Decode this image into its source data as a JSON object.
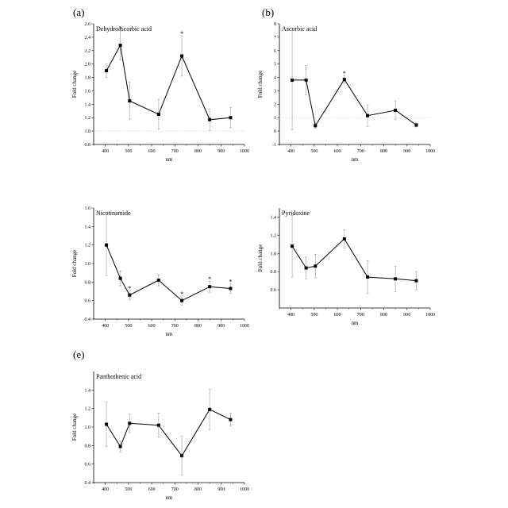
{
  "figure": {
    "panels": [
      {
        "letter": "(a)",
        "chart_data": {
          "type": "line",
          "title": "Dehydroascorbic acid",
          "xlabel": "nm",
          "ylabel": "Fold change",
          "xlim": [
            350,
            1000
          ],
          "ylim": [
            0.8,
            2.6
          ],
          "xticks": [
            "400",
            "500",
            "600",
            "700",
            "800",
            "900",
            "1000"
          ],
          "yticks": [
            "0.8",
            "1.0",
            "1.2",
            "1.4",
            "1.6",
            "1.8",
            "2.0",
            "2.2",
            "2.4",
            "2.6"
          ],
          "reference_y": 1.0,
          "x": [
            405,
            465,
            505,
            630,
            730,
            850,
            940
          ],
          "values": [
            1.9,
            2.28,
            1.45,
            1.25,
            2.12,
            1.17,
            1.2
          ],
          "errors": [
            0.1,
            0.22,
            0.28,
            0.22,
            0.3,
            0.16,
            0.15
          ],
          "significance": [
            "",
            "*",
            "",
            "",
            "*",
            "",
            ""
          ]
        }
      },
      {
        "letter": "(b)",
        "chart_data": {
          "type": "line",
          "title": "Ascorbic acid",
          "xlabel": "nm",
          "ylabel": "Fold change",
          "xlim": [
            350,
            1000
          ],
          "ylim": [
            -1,
            8
          ],
          "xticks": [
            "400",
            "500",
            "600",
            "700",
            "800",
            "900",
            "1000"
          ],
          "yticks": [
            "-1",
            "0",
            "1",
            "2",
            "3",
            "4",
            "5",
            "6",
            "7",
            "8"
          ],
          "reference_y": 1.0,
          "x": [
            405,
            465,
            505,
            630,
            730,
            850,
            940
          ],
          "values": [
            3.8,
            3.8,
            0.4,
            3.85,
            1.15,
            1.55,
            0.45
          ],
          "errors": [
            3.7,
            1.1,
            0.2,
            0.3,
            0.8,
            0.7,
            0.15
          ],
          "significance": [
            "",
            "",
            "",
            "*",
            "",
            "",
            ""
          ]
        }
      },
      {
        "letter": "",
        "chart_data": {
          "type": "line",
          "title": "Nicotinamide",
          "xlabel": "nm",
          "ylabel": "Fold change",
          "xlim": [
            350,
            1000
          ],
          "ylim": [
            0.4,
            1.6
          ],
          "xticks": [
            "400",
            "500",
            "600",
            "700",
            "800",
            "900",
            "1000"
          ],
          "yticks": [
            "0.4",
            "0.6",
            "0.8",
            "1.0",
            "1.2",
            "1.4",
            "1.6"
          ],
          "reference_y": null,
          "x": [
            405,
            465,
            505,
            630,
            730,
            850,
            940
          ],
          "values": [
            1.2,
            0.84,
            0.66,
            0.82,
            0.6,
            0.75,
            0.73
          ],
          "errors": [
            0.33,
            0.08,
            0.05,
            0.06,
            0.05,
            0.06,
            0.05
          ],
          "significance": [
            "",
            "",
            "*",
            "",
            "*",
            "*",
            "*"
          ]
        }
      },
      {
        "letter": "",
        "chart_data": {
          "type": "line",
          "title": "Pyridoxine",
          "xlabel": "nm",
          "ylabel": "Fold change",
          "xlim": [
            350,
            1000
          ],
          "ylim": [
            0.4,
            1.5
          ],
          "xticks": [
            "400",
            "500",
            "600",
            "700",
            "800",
            "900",
            "1000"
          ],
          "yticks": [
            "0.6",
            "0.8",
            "1.0",
            "1.2",
            "1.4"
          ],
          "reference_y": null,
          "x": [
            405,
            465,
            505,
            630,
            730,
            850,
            940
          ],
          "values": [
            1.08,
            0.84,
            0.86,
            1.16,
            0.74,
            0.72,
            0.7
          ],
          "errors": [
            0.34,
            0.12,
            0.13,
            0.1,
            0.18,
            0.14,
            0.1
          ],
          "significance": [
            "",
            "",
            "",
            "",
            "",
            "",
            ""
          ]
        }
      },
      {
        "letter": "(e)",
        "chart_data": {
          "type": "line",
          "title": "Panthothenic acid",
          "xlabel": "nm",
          "ylabel": "Fold change",
          "xlim": [
            350,
            1000
          ],
          "ylim": [
            0.4,
            1.6
          ],
          "xticks": [
            "400",
            "500",
            "600",
            "700",
            "800",
            "900",
            "1000"
          ],
          "yticks": [
            "0.4",
            "0.6",
            "0.8",
            "1.0",
            "1.2",
            "1.4"
          ],
          "reference_y": null,
          "x": [
            405,
            465,
            505,
            630,
            730,
            850,
            940
          ],
          "values": [
            1.03,
            0.79,
            1.04,
            1.02,
            0.69,
            1.19,
            1.08
          ],
          "errors": [
            0.24,
            0.06,
            0.1,
            0.13,
            0.21,
            0.22,
            0.07
          ],
          "significance": [
            "",
            "",
            "",
            "",
            "",
            "",
            ""
          ]
        }
      }
    ]
  }
}
